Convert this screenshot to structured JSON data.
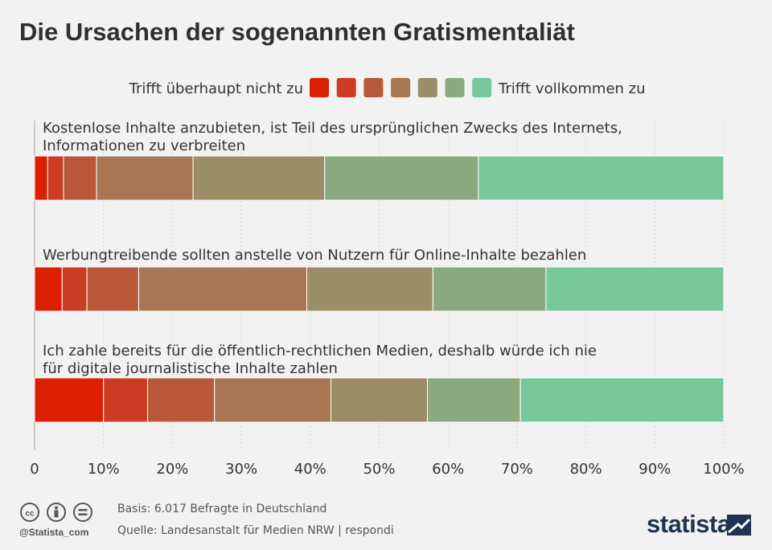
{
  "title": "Die Ursachen der sogenannten Gratismentaliät",
  "legend": {
    "left_label": "Trifft überhaupt nicht zu",
    "right_label": "Trifft vollkommen zu"
  },
  "colors": [
    "#dc1f00",
    "#cc3b23",
    "#b9573a",
    "#a87653",
    "#9a8e66",
    "#8aa97e",
    "#78c89c"
  ],
  "chart_data": {
    "type": "bar",
    "orientation": "horizontal",
    "stacked": true,
    "categories": [
      [
        "Kostenlose Inhalte anzubieten, ist Teil des ursprünglichen Zwecks des Internets,",
        "Informationen zu verbreiten"
      ],
      [
        "Werbungtreibende sollten anstelle von Nutzern für Online-Inhalte bezahlen"
      ],
      [
        "Ich zahle bereits für die öffentlich-rechtlichen Medien, deshalb würde ich nie",
        "für digitale journalistische Inhalte zahlen"
      ]
    ],
    "series": [
      {
        "name": "Trifft überhaupt nicht zu",
        "values": [
          1.9,
          4.0,
          10.0
        ]
      },
      {
        "name": "",
        "values": [
          2.3,
          3.6,
          6.4
        ]
      },
      {
        "name": "",
        "values": [
          4.8,
          7.5,
          9.7
        ]
      },
      {
        "name": "",
        "values": [
          14.0,
          24.4,
          16.9
        ]
      },
      {
        "name": "",
        "values": [
          19.1,
          18.3,
          14.0
        ]
      },
      {
        "name": "",
        "values": [
          22.3,
          16.4,
          13.5
        ]
      },
      {
        "name": "Trifft vollkommen zu",
        "values": [
          35.6,
          25.8,
          29.5
        ]
      }
    ],
    "x_ticks": [
      "0",
      "10%",
      "20%",
      "30%",
      "40%",
      "50%",
      "60%",
      "70%",
      "80%",
      "90%",
      "100%"
    ],
    "xlim": [
      0,
      100
    ],
    "grid": true,
    "legend_position": "top"
  },
  "footer": {
    "basis": "Basis: 6.017 Befragte in Deutschland",
    "source": "Quelle: Landesanstalt für Medien NRW | respondi",
    "handle": "@Statista_com",
    "brand": "statista"
  }
}
